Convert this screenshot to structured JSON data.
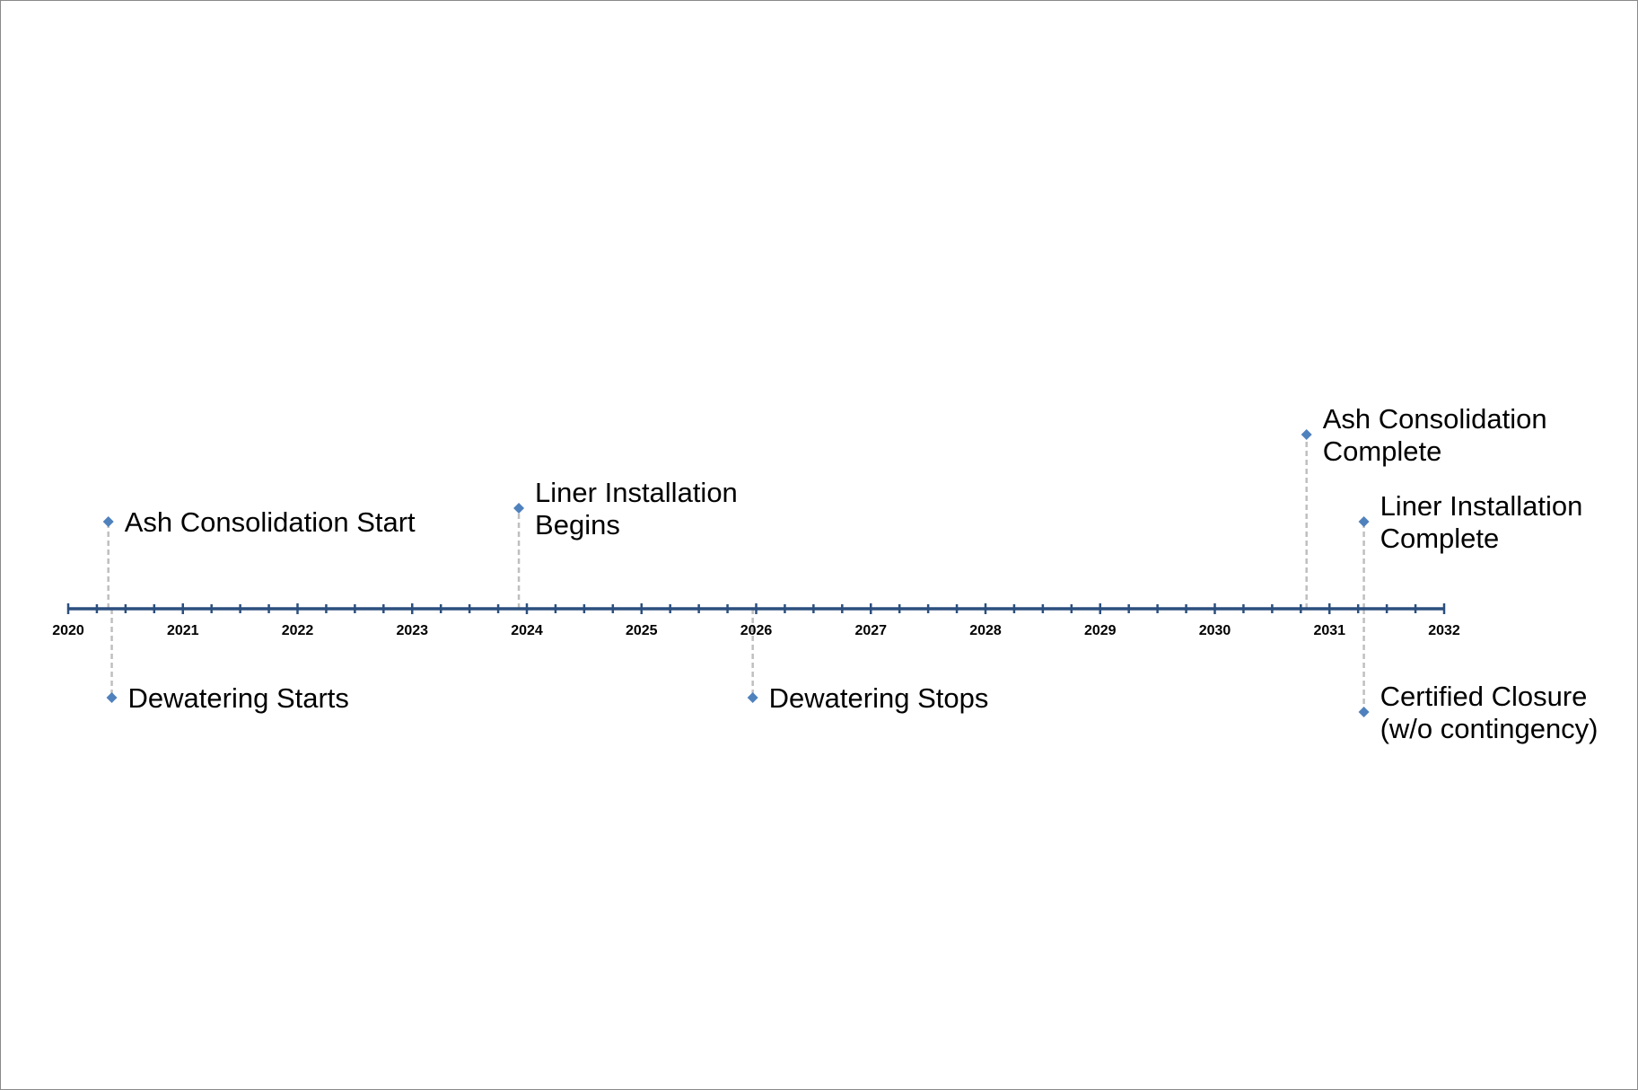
{
  "timeline": {
    "axis": {
      "start_year": 2020,
      "end_year": 2032,
      "ticks_per_year": 4,
      "year_labels": [
        "2020",
        "2021",
        "2022",
        "2023",
        "2024",
        "2025",
        "2026",
        "2027",
        "2028",
        "2029",
        "2030",
        "2031",
        "2032"
      ]
    },
    "colors": {
      "axis": "#2b4f7e",
      "marker": "#4f81bd",
      "connector": "#bfbfbf",
      "frame_border": "#8a8a8a"
    },
    "events": [
      {
        "id": "ash-consolidation-start",
        "date": 2020.35,
        "side": "above",
        "level": 1,
        "lines": [
          "Ash Consolidation Start"
        ]
      },
      {
        "id": "liner-installation-begins",
        "date": 2023.93,
        "side": "above",
        "level": 2,
        "lines": [
          "Liner Installation",
          "Begins"
        ]
      },
      {
        "id": "ash-consolidation-complete",
        "date": 2030.8,
        "side": "above",
        "level": 3,
        "lines": [
          "Ash Consolidation",
          "Complete"
        ]
      },
      {
        "id": "liner-installation-complete",
        "date": 2031.3,
        "side": "above",
        "level": 1,
        "lines": [
          "Liner Installation",
          "Complete"
        ]
      },
      {
        "id": "dewatering-starts",
        "date": 2020.38,
        "side": "below",
        "level": 1,
        "lines": [
          "Dewatering Starts"
        ]
      },
      {
        "id": "dewatering-stops",
        "date": 2025.97,
        "side": "below",
        "level": 1,
        "lines": [
          "Dewatering Stops"
        ]
      },
      {
        "id": "certified-closure",
        "date": 2031.3,
        "side": "below",
        "level": 2,
        "lines": [
          "Certified Closure",
          "(w/o contingency)"
        ]
      }
    ]
  }
}
